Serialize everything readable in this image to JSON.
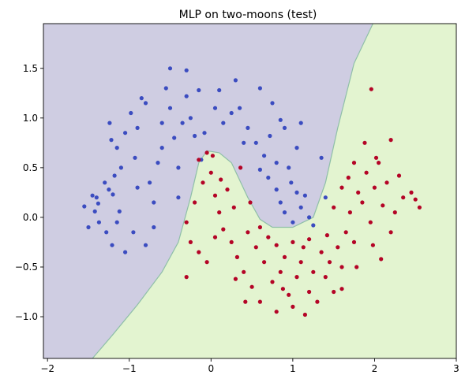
{
  "chart_data": {
    "type": "scatter",
    "title": "MLP on two-moons (test)",
    "xlabel": "",
    "ylabel": "",
    "xlim": [
      -2.05,
      3.0
    ],
    "ylim": [
      -1.42,
      1.95
    ],
    "x_ticks": [
      -2,
      -1,
      0,
      1,
      2,
      3
    ],
    "y_ticks": [
      -1.0,
      -0.5,
      0.0,
      0.5,
      1.0,
      1.5
    ],
    "x_tick_labels": [
      "−2",
      "−1",
      "0",
      "1",
      "2",
      "3"
    ],
    "y_tick_labels": [
      "−1.0",
      "−0.5",
      "0.0",
      "0.5",
      "1.0",
      "1.5"
    ],
    "grid": false,
    "legend": "none",
    "colors": {
      "region_class0": "#cfcde2",
      "region_class1": "#e3f4d0",
      "boundary": "#8fbfa8",
      "class0_points": "#3b4cc0",
      "class1_points": "#b40426"
    },
    "decision_boundary": [
      [
        -1.45,
        -1.42
      ],
      [
        -1.2,
        -1.18
      ],
      [
        -0.9,
        -0.88
      ],
      [
        -0.6,
        -0.55
      ],
      [
        -0.4,
        -0.25
      ],
      [
        -0.25,
        0.2
      ],
      [
        -0.15,
        0.55
      ],
      [
        -0.05,
        0.67
      ],
      [
        0.1,
        0.65
      ],
      [
        0.25,
        0.55
      ],
      [
        0.45,
        0.2
      ],
      [
        0.6,
        -0.02
      ],
      [
        0.75,
        -0.1
      ],
      [
        1.0,
        -0.1
      ],
      [
        1.25,
        0.0
      ],
      [
        1.4,
        0.35
      ],
      [
        1.55,
        0.9
      ],
      [
        1.75,
        1.55
      ],
      [
        1.98,
        1.95
      ]
    ],
    "series": [
      {
        "class": 0,
        "points": [
          [
            -1.55,
            0.11
          ],
          [
            -1.45,
            0.22
          ],
          [
            -1.4,
            0.2
          ],
          [
            -1.37,
            -0.05
          ],
          [
            -1.42,
            0.06
          ],
          [
            -1.38,
            0.14
          ],
          [
            -1.5,
            -0.1
          ],
          [
            -1.3,
            0.35
          ],
          [
            -1.25,
            0.28
          ],
          [
            -1.2,
            0.23
          ],
          [
            -1.28,
            -0.15
          ],
          [
            -1.21,
            -0.28
          ],
          [
            -1.15,
            -0.05
          ],
          [
            -1.12,
            0.06
          ],
          [
            -1.18,
            0.42
          ],
          [
            -1.1,
            0.5
          ],
          [
            -1.22,
            0.78
          ],
          [
            -1.24,
            0.95
          ],
          [
            -1.15,
            0.7
          ],
          [
            -1.05,
            0.85
          ],
          [
            -0.98,
            1.05
          ],
          [
            -1.05,
            -0.35
          ],
          [
            -0.95,
            -0.15
          ],
          [
            -0.93,
            0.6
          ],
          [
            -0.9,
            0.9
          ],
          [
            -0.85,
            1.2
          ],
          [
            -0.8,
            1.15
          ],
          [
            -0.75,
            0.35
          ],
          [
            -0.7,
            0.15
          ],
          [
            -0.65,
            0.55
          ],
          [
            -0.6,
            0.95
          ],
          [
            -0.55,
            1.3
          ],
          [
            -0.5,
            1.1
          ],
          [
            -0.45,
            0.8
          ],
          [
            -0.4,
            0.5
          ],
          [
            -0.35,
            0.95
          ],
          [
            -0.3,
            1.22
          ],
          [
            -0.25,
            1.0
          ],
          [
            -0.2,
            0.82
          ],
          [
            -0.15,
            1.28
          ],
          [
            -0.12,
            0.58
          ],
          [
            -0.08,
            0.85
          ],
          [
            0.05,
            1.1
          ],
          [
            0.1,
            1.28
          ],
          [
            0.15,
            0.95
          ],
          [
            0.25,
            1.05
          ],
          [
            0.3,
            1.38
          ],
          [
            0.35,
            1.1
          ],
          [
            0.45,
            0.9
          ],
          [
            0.55,
            0.75
          ],
          [
            0.6,
            1.3
          ],
          [
            0.65,
            0.62
          ],
          [
            0.7,
            0.4
          ],
          [
            0.75,
            1.15
          ],
          [
            0.8,
            0.28
          ],
          [
            0.85,
            0.15
          ],
          [
            0.9,
            0.05
          ],
          [
            0.95,
            0.5
          ],
          [
            1.0,
            -0.05
          ],
          [
            1.05,
            0.25
          ],
          [
            1.1,
            0.1
          ],
          [
            1.15,
            0.22
          ],
          [
            1.2,
            0.0
          ],
          [
            1.25,
            -0.08
          ],
          [
            1.1,
            0.95
          ],
          [
            1.05,
            0.7
          ],
          [
            0.85,
            0.98
          ],
          [
            0.72,
            0.82
          ],
          [
            0.6,
            0.48
          ],
          [
            0.4,
            0.75
          ],
          [
            -0.6,
            0.7
          ],
          [
            -0.4,
            0.2
          ],
          [
            -0.7,
            -0.1
          ],
          [
            -0.8,
            -0.28
          ],
          [
            -0.9,
            0.3
          ],
          [
            -0.5,
            1.5
          ],
          [
            -0.3,
            1.48
          ],
          [
            0.8,
            0.55
          ],
          [
            0.9,
            0.9
          ],
          [
            1.35,
            0.6
          ],
          [
            1.4,
            0.2
          ],
          [
            0.98,
            0.35
          ]
        ]
      },
      {
        "class": 1,
        "points": [
          [
            -0.15,
            0.58
          ],
          [
            -0.1,
            0.35
          ],
          [
            -0.05,
            0.65
          ],
          [
            0.0,
            0.45
          ],
          [
            0.02,
            0.62
          ],
          [
            0.05,
            0.22
          ],
          [
            0.1,
            0.05
          ],
          [
            0.12,
            0.38
          ],
          [
            0.15,
            -0.12
          ],
          [
            0.2,
            0.28
          ],
          [
            0.25,
            -0.25
          ],
          [
            0.28,
            0.1
          ],
          [
            0.32,
            -0.4
          ],
          [
            0.36,
            0.5
          ],
          [
            0.4,
            -0.55
          ],
          [
            0.45,
            -0.15
          ],
          [
            0.48,
            0.15
          ],
          [
            0.5,
            -0.7
          ],
          [
            0.55,
            -0.3
          ],
          [
            0.6,
            -0.85
          ],
          [
            0.65,
            -0.45
          ],
          [
            0.7,
            -0.2
          ],
          [
            0.75,
            -0.65
          ],
          [
            0.8,
            -0.95
          ],
          [
            0.85,
            -0.55
          ],
          [
            0.9,
            -0.4
          ],
          [
            0.95,
            -0.78
          ],
          [
            1.0,
            -0.9
          ],
          [
            1.05,
            -0.6
          ],
          [
            1.1,
            -0.45
          ],
          [
            1.15,
            -0.98
          ],
          [
            1.2,
            -0.75
          ],
          [
            1.25,
            -0.55
          ],
          [
            1.3,
            -0.85
          ],
          [
            1.35,
            -0.35
          ],
          [
            1.4,
            -0.6
          ],
          [
            1.45,
            -0.45
          ],
          [
            1.5,
            -0.75
          ],
          [
            1.55,
            -0.3
          ],
          [
            1.6,
            -0.5
          ],
          [
            1.65,
            -0.15
          ],
          [
            1.7,
            0.05
          ],
          [
            1.75,
            -0.25
          ],
          [
            1.8,
            0.25
          ],
          [
            1.85,
            0.15
          ],
          [
            1.9,
            0.45
          ],
          [
            1.95,
            -0.05
          ],
          [
            2.0,
            0.3
          ],
          [
            2.05,
            0.55
          ],
          [
            2.1,
            0.12
          ],
          [
            2.15,
            0.35
          ],
          [
            2.2,
            -0.15
          ],
          [
            2.25,
            0.05
          ],
          [
            2.3,
            0.42
          ],
          [
            2.35,
            0.2
          ],
          [
            2.45,
            0.25
          ],
          [
            2.5,
            0.18
          ],
          [
            2.55,
            0.1
          ],
          [
            1.88,
            0.75
          ],
          [
            2.02,
            0.6
          ],
          [
            1.96,
            1.29
          ],
          [
            2.2,
            0.78
          ],
          [
            1.75,
            0.55
          ],
          [
            1.6,
            0.3
          ],
          [
            1.5,
            0.1
          ],
          [
            -0.2,
            0.15
          ],
          [
            -0.3,
            -0.05
          ],
          [
            -0.25,
            -0.25
          ],
          [
            -0.15,
            -0.35
          ],
          [
            -0.3,
            -0.6
          ],
          [
            -0.05,
            -0.45
          ],
          [
            0.05,
            -0.2
          ],
          [
            0.3,
            -0.62
          ],
          [
            0.6,
            -0.1
          ],
          [
            0.8,
            -0.28
          ],
          [
            1.0,
            -0.25
          ],
          [
            1.2,
            -0.22
          ],
          [
            0.88,
            -0.72
          ],
          [
            1.13,
            -0.3
          ],
          [
            0.42,
            -0.85
          ],
          [
            1.6,
            -0.72
          ],
          [
            1.78,
            -0.5
          ],
          [
            1.42,
            -0.18
          ],
          [
            2.08,
            -0.42
          ],
          [
            1.98,
            -0.28
          ],
          [
            1.68,
            0.4
          ]
        ]
      }
    ]
  }
}
